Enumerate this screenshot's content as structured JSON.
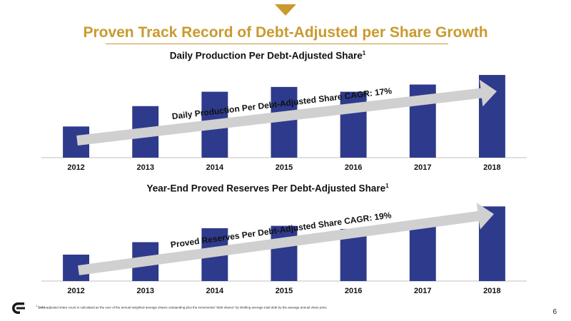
{
  "header": {
    "title": "Proven Track Record of Debt-Adjusted per Share Growth",
    "accent_color": "#c99a2e"
  },
  "chart_data": [
    {
      "type": "bar",
      "title": "Daily Production Per Debt-Adjusted Share",
      "title_footnote_mark": "1",
      "categories": [
        "2012",
        "2013",
        "2014",
        "2015",
        "2016",
        "2017",
        "2018"
      ],
      "values": [
        26,
        43,
        55,
        59,
        55,
        61,
        69
      ],
      "ylim": [
        0,
        75
      ],
      "bar_color": "#2e3a8c",
      "annotation": "Daily Production Per Debt-Adjusted Share CAGR: 17%"
    },
    {
      "type": "bar",
      "title": "Year-End Proved Reserves Per Debt-Adjusted Share",
      "title_footnote_mark": "1",
      "categories": [
        "2012",
        "2013",
        "2014",
        "2015",
        "2016",
        "2017",
        "2018"
      ],
      "values": [
        34,
        50,
        68,
        71,
        67,
        78,
        96
      ],
      "ylim": [
        0,
        100
      ],
      "bar_color": "#2e3a8c",
      "annotation": "Proved Reserves Per Debt-Adjusted Share CAGR: 19%"
    }
  ],
  "footer": {
    "footnote_mark": "1",
    "footnote_lead": "Debt-",
    "footnote_text": "adjusted share count is calculated as the sum of the annual weighted average shares outstanding plus the incremental \"debt shares\" by dividing average total debt by the average annual share price",
    "page_number": "6"
  }
}
